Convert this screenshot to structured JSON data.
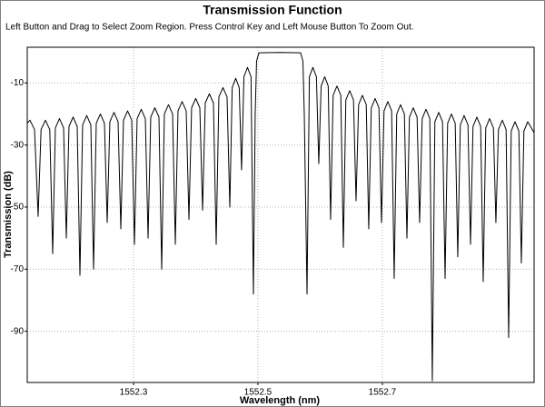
{
  "chart_data": {
    "type": "line",
    "title": "Transmission Function",
    "subtitle": "Left Button and Drag to Select Zoom Region. Press Control Key and Left Mouse Button To Zoom Out.",
    "x_label": "Wavelength (nm)",
    "y_label": "Transmission (dB)",
    "color": "#000000",
    "grid": true,
    "xlim": [
      1552.1292,
      1552.9439
    ],
    "ylim": [
      -106.5,
      1.5
    ],
    "xticks": [
      1552.3,
      1552.5,
      1552.7
    ],
    "yticks": [
      -10,
      -30,
      -50,
      -70,
      -90
    ],
    "x": [
      1552.1292,
      1552.1336,
      1552.1409,
      1552.1467,
      1552.1514,
      1552.1584,
      1552.1654,
      1552.1701,
      1552.1744,
      1552.181,
      1552.1876,
      1552.192,
      1552.1963,
      1552.2029,
      1552.2095,
      1552.2139,
      1552.2182,
      1552.2248,
      1552.2314,
      1552.2358,
      1552.2401,
      1552.2467,
      1552.2533,
      1552.2577,
      1552.262,
      1552.2686,
      1552.2752,
      1552.2796,
      1552.2839,
      1552.2905,
      1552.2971,
      1552.3015,
      1552.3058,
      1552.3124,
      1552.319,
      1552.3234,
      1552.3277,
      1552.3343,
      1552.3409,
      1552.3453,
      1552.3496,
      1552.3562,
      1552.3628,
      1552.3672,
      1552.3715,
      1552.3781,
      1552.3847,
      1552.3891,
      1552.3934,
      1552.4,
      1552.4066,
      1552.411,
      1552.4153,
      1552.4219,
      1552.4285,
      1552.4329,
      1552.4372,
      1552.4438,
      1552.4504,
      1552.4548,
      1552.4586,
      1552.4643,
      1552.4699,
      1552.4737,
      1552.4775,
      1552.4832,
      1552.4889,
      1552.4927,
      1552.4956,
      1552.4978,
      1552.5015,
      1552.5351,
      1552.5686,
      1552.5723,
      1552.5745,
      1552.5789,
      1552.5827,
      1552.5883,
      1552.594,
      1552.5978,
      1552.6016,
      1552.6073,
      1552.613,
      1552.6168,
      1552.6209,
      1552.627,
      1552.6332,
      1552.6373,
      1552.6413,
      1552.6475,
      1552.6536,
      1552.6577,
      1552.6618,
      1552.6679,
      1552.6741,
      1552.6781,
      1552.6822,
      1552.6884,
      1552.6945,
      1552.6986,
      1552.7027,
      1552.7088,
      1552.7149,
      1552.719,
      1552.7231,
      1552.7292,
      1552.7354,
      1552.7395,
      1552.7435,
      1552.7497,
      1552.7558,
      1552.7599,
      1552.764,
      1552.7701,
      1552.7763,
      1552.7803,
      1552.7844,
      1552.7906,
      1552.7967,
      1552.8008,
      1552.8049,
      1552.811,
      1552.8171,
      1552.8212,
      1552.8253,
      1552.8314,
      1552.8376,
      1552.8417,
      1552.8457,
      1552.8519,
      1552.858,
      1552.8621,
      1552.8662,
      1552.8723,
      1552.8785,
      1552.8825,
      1552.8866,
      1552.8928,
      1552.8989,
      1552.903,
      1552.9071,
      1552.9132,
      1552.9194,
      1552.9234,
      1552.9275,
      1552.9337,
      1552.9439
    ],
    "values": [
      -23,
      -22,
      -25,
      -53,
      -25,
      -22,
      -25,
      -65,
      -24.5,
      -21.5,
      -24.5,
      -60,
      -24,
      -21,
      -24,
      -72,
      -23.5,
      -20.5,
      -23.5,
      -70,
      -23,
      -20,
      -23,
      -55,
      -22.5,
      -19.5,
      -22.5,
      -57,
      -22,
      -19,
      -22,
      -62,
      -21.5,
      -18.5,
      -21.5,
      -60,
      -21,
      -18,
      -21,
      -70,
      -20,
      -17,
      -20,
      -62,
      -19,
      -16,
      -19,
      -54,
      -18,
      -15,
      -18,
      -51,
      -16.5,
      -13.5,
      -16.5,
      -62,
      -14.5,
      -11.5,
      -14.5,
      -50,
      -11.5,
      -8.5,
      -11.5,
      -38,
      -8,
      -5,
      -8,
      -78,
      -20,
      -3,
      -0.3,
      -0.2,
      -0.3,
      -3,
      -20,
      -78,
      -8,
      -5,
      -8,
      -36,
      -11,
      -8,
      -11,
      -54,
      -14,
      -11,
      -14,
      -63,
      -15.5,
      -12.5,
      -15.5,
      -48,
      -17,
      -14,
      -17,
      -57,
      -18,
      -15,
      -18,
      -55,
      -19,
      -16,
      -19,
      -73,
      -20,
      -17,
      -20,
      -60,
      -21,
      -18,
      -21,
      -55,
      -21.5,
      -18.5,
      -21.5,
      -106,
      -22.5,
      -19.5,
      -22.5,
      -73,
      -23,
      -20,
      -23,
      -66,
      -23.5,
      -20.5,
      -23.5,
      -62,
      -24,
      -21,
      -24,
      -74,
      -24.5,
      -21.5,
      -24.5,
      -55,
      -25,
      -22,
      -25,
      -92,
      -25.5,
      -22.5,
      -25.5,
      -68,
      -25.5,
      -22.5,
      -26
    ]
  }
}
